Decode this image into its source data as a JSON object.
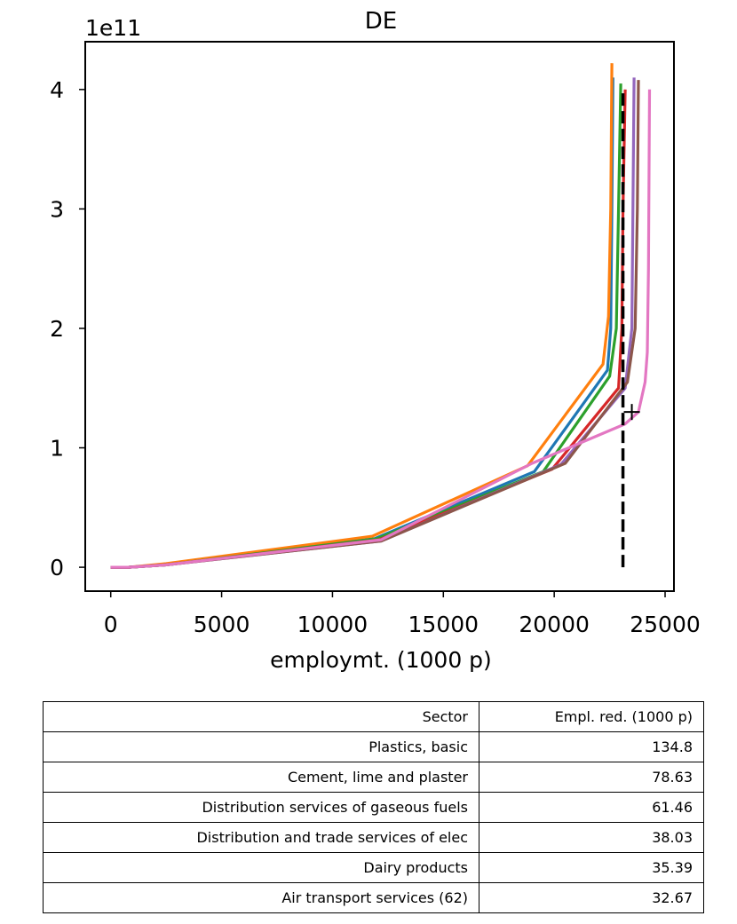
{
  "chart_data": {
    "type": "line",
    "title": "DE",
    "xlabel": "employmt. (1000 p)",
    "ylabel": "",
    "y_offset_label": "1e11",
    "xlim": [
      -1150,
      25400
    ],
    "ylim": [
      -0.2,
      4.4
    ],
    "y_scale_factor": 100000000000,
    "xticks": [
      0,
      5000,
      10000,
      15000,
      20000,
      25000
    ],
    "xtick_labels": [
      "0",
      "5000",
      "10000",
      "15000",
      "20000",
      "25000"
    ],
    "yticks": [
      0,
      1,
      2,
      3,
      4
    ],
    "ytick_labels": [
      "0",
      "1",
      "2",
      "3",
      "4"
    ],
    "grid": false,
    "series": [
      {
        "color": "#1f77b4",
        "points": [
          [
            0,
            0
          ],
          [
            800,
            0
          ],
          [
            2500,
            0.02
          ],
          [
            11900,
            0.24
          ],
          [
            19100,
            0.8
          ],
          [
            22400,
            1.65
          ],
          [
            22550,
            2.0
          ],
          [
            22600,
            3.0
          ],
          [
            22650,
            4.1
          ]
        ]
      },
      {
        "color": "#ff7f0e",
        "points": [
          [
            0,
            0
          ],
          [
            800,
            0
          ],
          [
            2500,
            0.03
          ],
          [
            11800,
            0.26
          ],
          [
            18800,
            0.85
          ],
          [
            22200,
            1.7
          ],
          [
            22450,
            2.1
          ],
          [
            22550,
            3.0
          ],
          [
            22600,
            4.22
          ]
        ]
      },
      {
        "color": "#2ca02c",
        "points": [
          [
            0,
            0
          ],
          [
            800,
            0
          ],
          [
            2500,
            0.02
          ],
          [
            12000,
            0.24
          ],
          [
            19500,
            0.8
          ],
          [
            22500,
            1.6
          ],
          [
            22800,
            2.0
          ],
          [
            22900,
            3.0
          ],
          [
            23000,
            4.05
          ]
        ]
      },
      {
        "color": "#d62728",
        "points": [
          [
            0,
            0
          ],
          [
            800,
            0
          ],
          [
            2500,
            0.02
          ],
          [
            12100,
            0.23
          ],
          [
            19900,
            0.82
          ],
          [
            22900,
            1.5
          ],
          [
            23050,
            2.0
          ],
          [
            23100,
            3.0
          ],
          [
            23200,
            4.0
          ]
        ]
      },
      {
        "color": "#9467bd",
        "points": [
          [
            0,
            0
          ],
          [
            800,
            0
          ],
          [
            2500,
            0.02
          ],
          [
            12200,
            0.22
          ],
          [
            20300,
            0.86
          ],
          [
            23200,
            1.5
          ],
          [
            23500,
            2.0
          ],
          [
            23550,
            3.0
          ],
          [
            23600,
            4.1
          ]
        ]
      },
      {
        "color": "#8c564b",
        "points": [
          [
            0,
            0
          ],
          [
            800,
            0
          ],
          [
            2500,
            0.02
          ],
          [
            12200,
            0.22
          ],
          [
            20500,
            0.87
          ],
          [
            23300,
            1.55
          ],
          [
            23650,
            2.0
          ],
          [
            23750,
            3.0
          ],
          [
            23800,
            4.08
          ]
        ]
      },
      {
        "color": "#e377c2",
        "points": [
          [
            0,
            0
          ],
          [
            800,
            0
          ],
          [
            2500,
            0.02
          ],
          [
            12200,
            0.23
          ],
          [
            19000,
            0.87
          ],
          [
            23200,
            1.2
          ],
          [
            23800,
            1.3
          ],
          [
            24100,
            1.55
          ],
          [
            24200,
            1.8
          ],
          [
            24250,
            2.5
          ],
          [
            24300,
            4.0
          ]
        ]
      }
    ],
    "reference_line": {
      "x": 23100,
      "y_range": [
        0,
        4.0
      ],
      "style": "dashed",
      "color": "#000000"
    },
    "marker": {
      "x": 23500,
      "y": 1.3,
      "symbol": "+"
    }
  },
  "table": {
    "headers": [
      "Sector",
      "Empl. red. (1000 p)"
    ],
    "rows": [
      [
        "Plastics, basic",
        "134.8"
      ],
      [
        "Cement, lime and plaster",
        "78.63"
      ],
      [
        "Distribution services of gaseous fuels",
        "61.46"
      ],
      [
        "Distribution and trade services of elec",
        "38.03"
      ],
      [
        "Dairy products",
        "35.39"
      ],
      [
        "Air transport services (62)",
        "32.67"
      ]
    ]
  }
}
